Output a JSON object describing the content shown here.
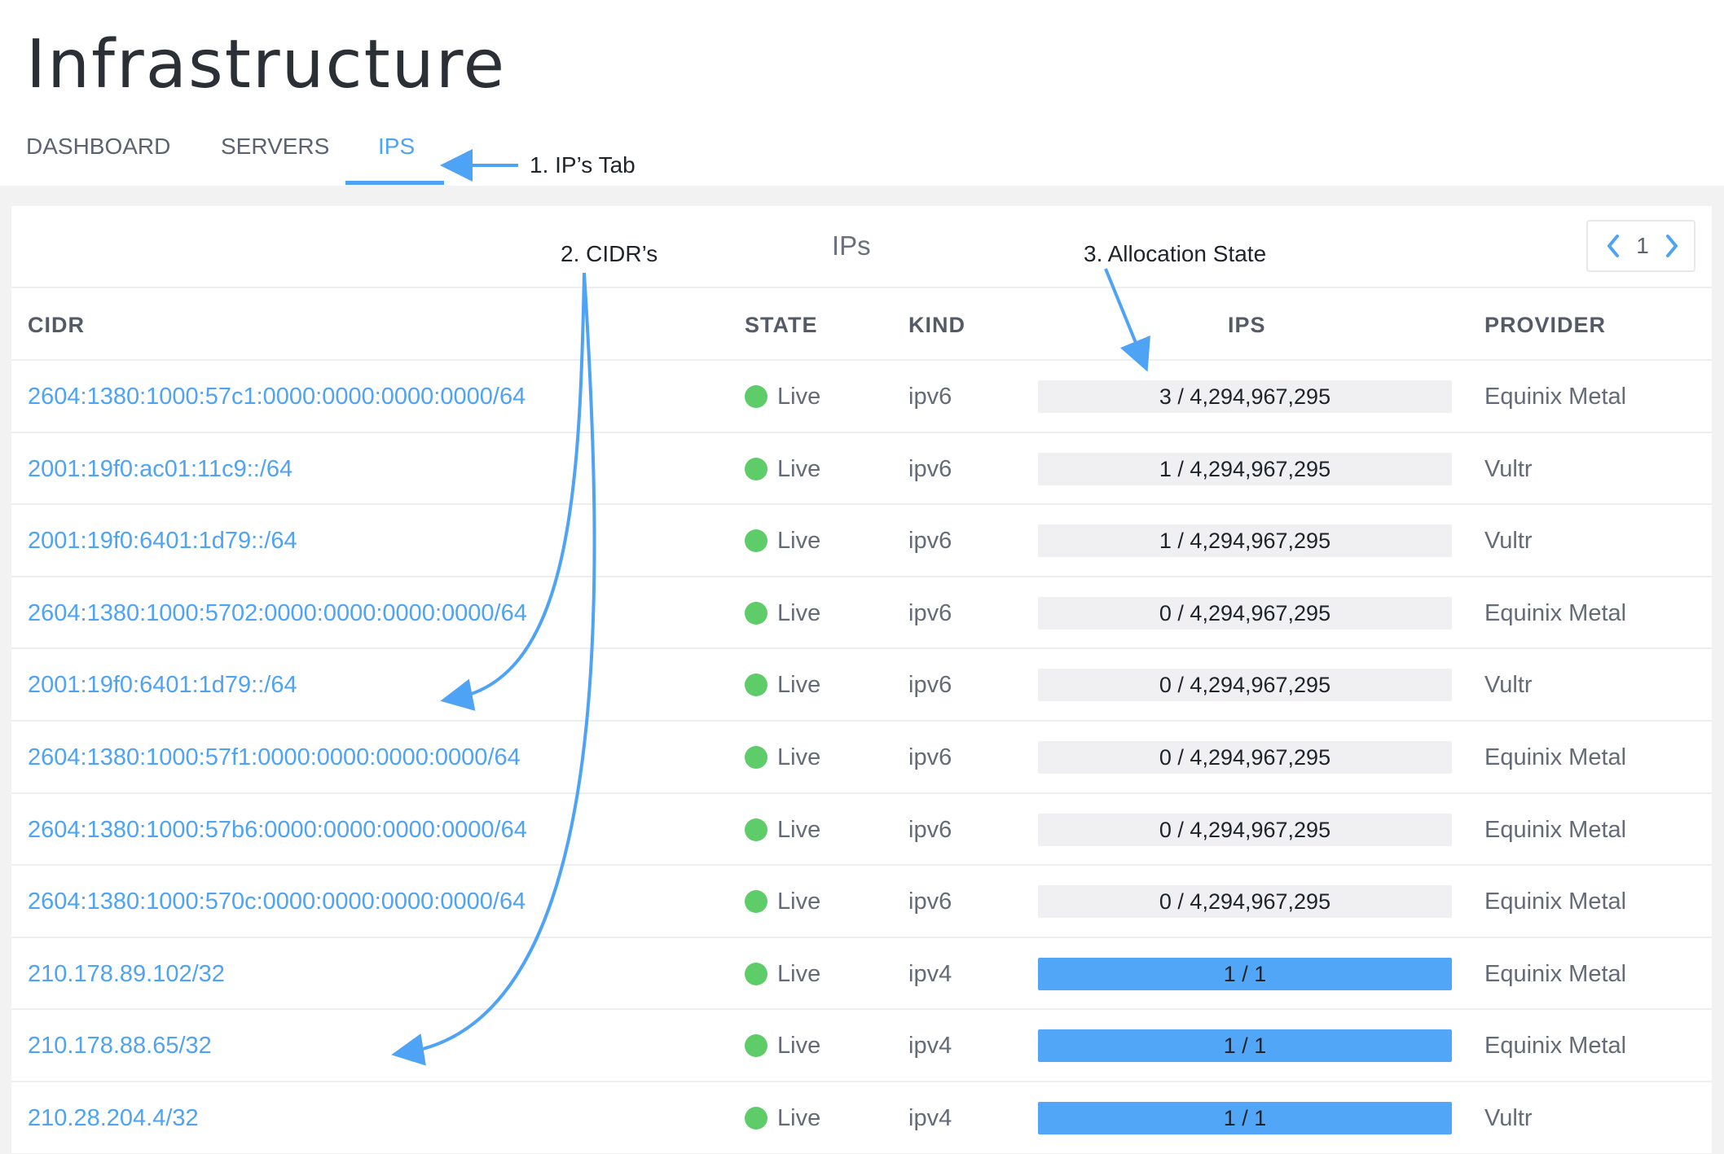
{
  "header": {
    "title": "Infrastructure"
  },
  "tabs": [
    {
      "label": "DASHBOARD",
      "active": false
    },
    {
      "label": "SERVERS",
      "active": false
    },
    {
      "label": "IPS",
      "active": true
    }
  ],
  "panel": {
    "title": "IPs",
    "pager": {
      "page": "1",
      "prev_icon": "chevron-left-icon",
      "next_icon": "chevron-right-icon"
    }
  },
  "table": {
    "columns": [
      "CIDR",
      "STATE",
      "KIND",
      "IPS",
      "PROVIDER"
    ],
    "rows": [
      {
        "cidr": "2604:1380:1000:57c1:0000:0000:0000:0000/64",
        "state": "Live",
        "kind": "ipv6",
        "ips": "3 / 4,294,967,295",
        "used_fraction": 0,
        "provider": "Equinix Metal"
      },
      {
        "cidr": "2001:19f0:ac01:11c9::/64",
        "state": "Live",
        "kind": "ipv6",
        "ips": "1 / 4,294,967,295",
        "used_fraction": 0,
        "provider": "Vultr"
      },
      {
        "cidr": "2001:19f0:6401:1d79::/64",
        "state": "Live",
        "kind": "ipv6",
        "ips": "1 / 4,294,967,295",
        "used_fraction": 0,
        "provider": "Vultr"
      },
      {
        "cidr": "2604:1380:1000:5702:0000:0000:0000:0000/64",
        "state": "Live",
        "kind": "ipv6",
        "ips": "0 / 4,294,967,295",
        "used_fraction": 0,
        "provider": "Equinix Metal"
      },
      {
        "cidr": "2001:19f0:6401:1d79::/64",
        "state": "Live",
        "kind": "ipv6",
        "ips": "0 / 4,294,967,295",
        "used_fraction": 0,
        "provider": "Vultr"
      },
      {
        "cidr": "2604:1380:1000:57f1:0000:0000:0000:0000/64",
        "state": "Live",
        "kind": "ipv6",
        "ips": "0 / 4,294,967,295",
        "used_fraction": 0,
        "provider": "Equinix Metal"
      },
      {
        "cidr": "2604:1380:1000:57b6:0000:0000:0000:0000/64",
        "state": "Live",
        "kind": "ipv6",
        "ips": "0 / 4,294,967,295",
        "used_fraction": 0,
        "provider": "Equinix Metal"
      },
      {
        "cidr": "2604:1380:1000:570c:0000:0000:0000:0000/64",
        "state": "Live",
        "kind": "ipv6",
        "ips": "0 / 4,294,967,295",
        "used_fraction": 0,
        "provider": "Equinix Metal"
      },
      {
        "cidr": "210.178.89.102/32",
        "state": "Live",
        "kind": "ipv4",
        "ips": "1 / 1",
        "used_fraction": 1,
        "provider": "Equinix Metal"
      },
      {
        "cidr": "210.178.88.65/32",
        "state": "Live",
        "kind": "ipv4",
        "ips": "1 / 1",
        "used_fraction": 1,
        "provider": "Equinix Metal"
      },
      {
        "cidr": "210.28.204.4/32",
        "state": "Live",
        "kind": "ipv4",
        "ips": "1 / 1",
        "used_fraction": 1,
        "provider": "Vultr"
      }
    ]
  },
  "annotations": {
    "tab": "1. IP’s Tab",
    "cidrs": "2. CIDR’s",
    "allocation": "3. Allocation State"
  },
  "colors": {
    "accent": "#4fa3f5",
    "live_status": "#5fcc6a",
    "bar_fill": "#52a6f7",
    "bar_track": "#f0f0f2",
    "annotation_arrow": "#4fa3f5"
  }
}
